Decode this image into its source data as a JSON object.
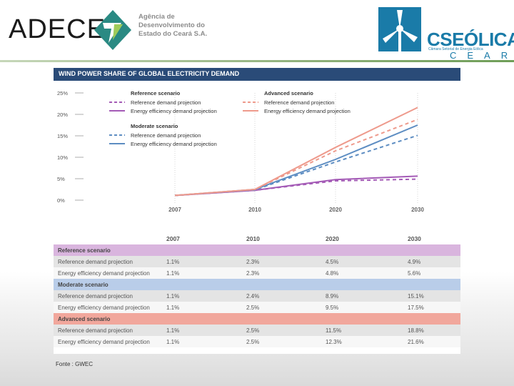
{
  "header": {
    "adece_word": "ADECE",
    "agency_lines": [
      "Agência de",
      "Desenvolvimento do",
      "Estado do Ceará S.A."
    ],
    "cs_word_a": "CS",
    "cs_word_b": "EÓLICA",
    "cs_sub": "Câmara Setorial de Energia Eólica",
    "ceara": "CEARÁ"
  },
  "colors": {
    "reference": "#a45bb6",
    "moderate": "#5d8dc2",
    "advanced": "#ee9a8c",
    "title_bar": "#2a4b78"
  },
  "chart_data": {
    "type": "line",
    "title": "WIND POWER SHARE OF GLOBAL ELECTRICITY DEMAND",
    "x": [
      "2007",
      "2010",
      "2020",
      "2030"
    ],
    "y_ticks": [
      "25%",
      "20%",
      "15%",
      "10%",
      "5%",
      "0%"
    ],
    "ylim": [
      0,
      25
    ],
    "legend": {
      "reference_title": "Reference scenario",
      "advanced_title": "Advanced scenario",
      "moderate_title": "Moderate scenario",
      "ref_demand": "Reference demand projection",
      "eff_demand": "Energy efficiency demand projection"
    },
    "series": [
      {
        "name": "Reference – Reference demand projection",
        "scenario": "reference",
        "dashed": true,
        "values": [
          1.1,
          2.3,
          4.5,
          4.9
        ]
      },
      {
        "name": "Reference – Energy efficiency demand projection",
        "scenario": "reference",
        "dashed": false,
        "values": [
          1.1,
          2.3,
          4.8,
          5.6
        ]
      },
      {
        "name": "Moderate – Reference demand projection",
        "scenario": "moderate",
        "dashed": true,
        "values": [
          1.1,
          2.4,
          8.9,
          15.1
        ]
      },
      {
        "name": "Moderate – Energy efficiency demand projection",
        "scenario": "moderate",
        "dashed": false,
        "values": [
          1.1,
          2.5,
          9.5,
          17.5
        ]
      },
      {
        "name": "Advanced – Reference demand projection",
        "scenario": "advanced",
        "dashed": true,
        "values": [
          1.1,
          2.5,
          11.5,
          18.8
        ]
      },
      {
        "name": "Advanced – Energy efficiency demand projection",
        "scenario": "advanced",
        "dashed": false,
        "values": [
          1.1,
          2.5,
          12.3,
          21.6
        ]
      }
    ]
  },
  "table": {
    "years": [
      "2007",
      "2010",
      "2020",
      "2030"
    ],
    "sections": [
      {
        "title": "Reference scenario",
        "rows": [
          {
            "label": "Reference demand projection",
            "values": [
              "1.1%",
              "2.3%",
              "4.5%",
              "4.9%"
            ]
          },
          {
            "label": "Energy efficiency demand projection",
            "values": [
              "1.1%",
              "2.3%",
              "4.8%",
              "5.6%"
            ]
          }
        ]
      },
      {
        "title": "Moderate scenario",
        "rows": [
          {
            "label": "Reference demand projection",
            "values": [
              "1.1%",
              "2.4%",
              "8.9%",
              "15.1%"
            ]
          },
          {
            "label": "Energy efficiency demand projection",
            "values": [
              "1.1%",
              "2.5%",
              "9.5%",
              "17.5%"
            ]
          }
        ]
      },
      {
        "title": "Advanced scenario",
        "rows": [
          {
            "label": "Reference demand projection",
            "values": [
              "1.1%",
              "2.5%",
              "11.5%",
              "18.8%"
            ]
          },
          {
            "label": "Energy efficiency demand projection",
            "values": [
              "1.1%",
              "2.5%",
              "12.3%",
              "21.6%"
            ]
          }
        ]
      }
    ]
  },
  "source": "Fonte : GWEC"
}
